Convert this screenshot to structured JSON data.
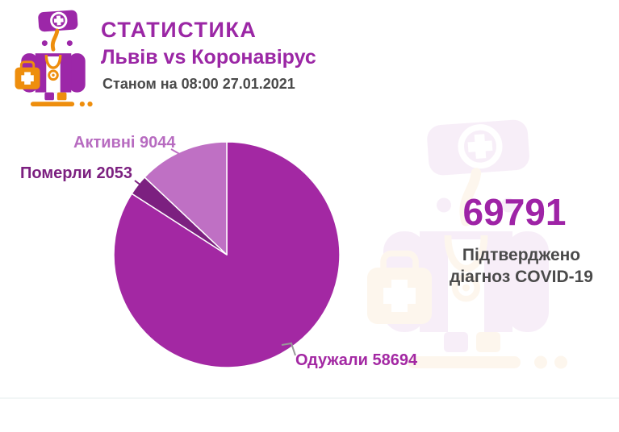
{
  "header": {
    "title": "СТАТИСТИКА",
    "subtitle": "Львів vs Коронавірус",
    "date_line": "Станом на 08:00 27.01.2021"
  },
  "summary": {
    "total": "69791",
    "caption_line1": "Підтверджено",
    "caption_line2": "діагноз COVID-19"
  },
  "chart_data": {
    "type": "pie",
    "title": "Львів vs Коронавірус — Станом на 08:00 27.01.2021",
    "total_confirmed": 69791,
    "start_angle_deg": 0,
    "direction": "clockwise",
    "legend_position": "callout-labels",
    "segments": [
      {
        "label": "Одужали",
        "value": 58694,
        "color": "#A328A3"
      },
      {
        "label": "Померли",
        "value": 2053,
        "color": "#7C2080"
      },
      {
        "label": "Активні",
        "value": 9044,
        "color": "#BF70C4"
      }
    ],
    "labels": {
      "aktyvni": "Активні 9044",
      "pomerly": "Померли 2053",
      "oduzhaly": "Одужали 58694"
    }
  },
  "colors": {
    "title_purple": "#9B27A5",
    "number_purple": "#9E23A6",
    "text_gray": "#4A4A4A",
    "icon_purple": "#9C27A8",
    "icon_orange": "#EE8E0D",
    "leader_gray": "#999999"
  }
}
